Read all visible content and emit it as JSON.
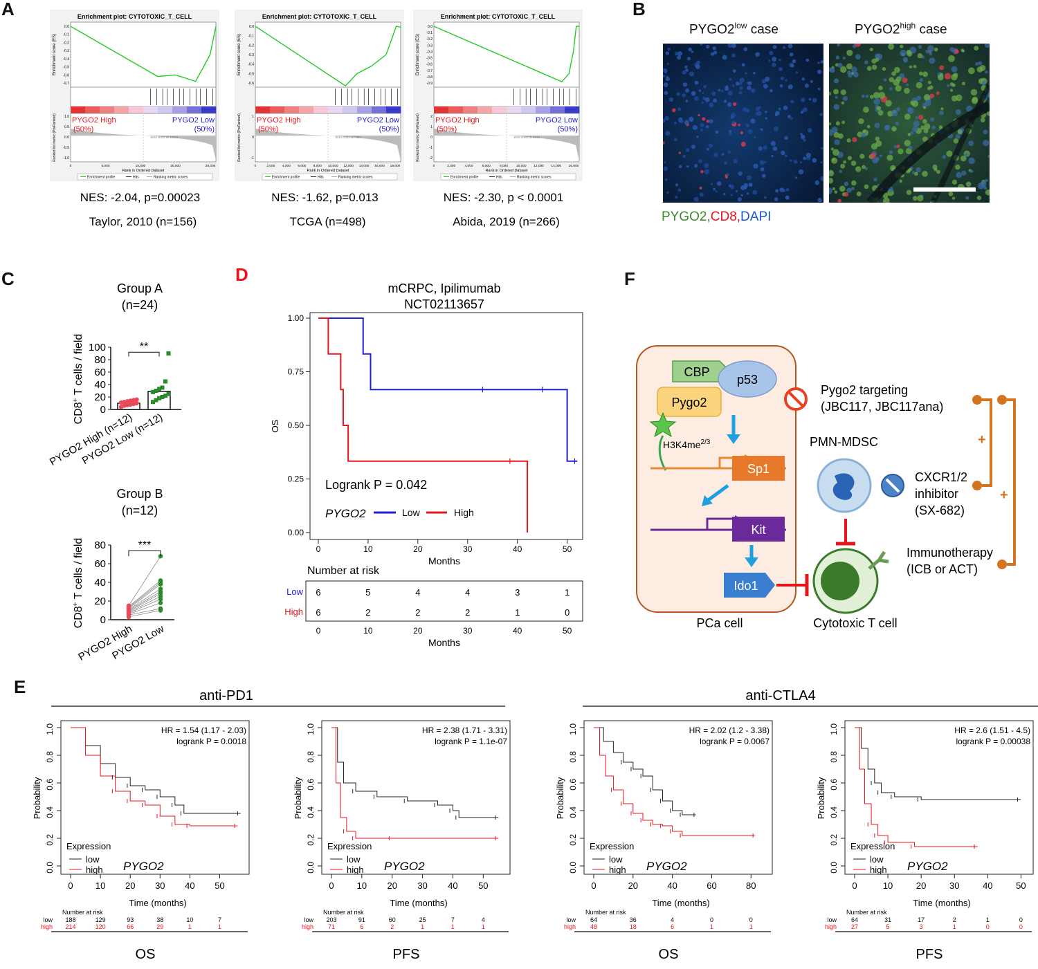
{
  "panels": {
    "A": {
      "label": "A",
      "plots": [
        {
          "title": "Enrichment plot: CYTOTOXIC_T_CELL",
          "es_label": "Enrichment score (ES)",
          "es_ticks": [
            "0.0",
            "-0.1",
            "-0.2",
            "-0.3",
            "-0.4",
            "-0.5",
            "-0.6",
            "-0.7"
          ],
          "metric_label": "Ranked list metric (PreRanked)",
          "metric_ticks": [
            "1.0",
            "0.5",
            "0.0",
            "-0.5",
            "-1.0"
          ],
          "x_label": "Rank in Ordered Dataset",
          "x_ticks": [
            "0",
            "5,000",
            "10,000",
            "15,000",
            "20,000"
          ],
          "high_label": "PYGO2 High",
          "high_pct": "(50%)",
          "low_label": "PYGO2 Low",
          "low_pct": "(50%)",
          "zero_cross": "Zero cross at 10534",
          "legend": [
            "Enrichment profile",
            "Hits",
            "Ranking metric scores"
          ],
          "nes": "NES: -2.04, p=0.00023",
          "dataset": "Taylor, 2010 (n=156)",
          "es_curve": [
            [
              0,
              0
            ],
            [
              0.6,
              -0.62
            ],
            [
              0.72,
              -0.6
            ],
            [
              0.86,
              -0.68
            ],
            [
              0.9,
              -0.55
            ],
            [
              0.96,
              -0.35
            ],
            [
              1,
              0
            ]
          ]
        },
        {
          "title": "Enrichment plot: CYTOTOXIC_T_CELL",
          "es_label": "Enrichment score (ES)",
          "es_ticks": [
            "0.0",
            "-0.1",
            "-0.2",
            "-0.3",
            "-0.4",
            "-0.5",
            "-0.6"
          ],
          "metric_label": "Ranked list metric (PreRanked)",
          "metric_ticks": [
            "1",
            "0",
            "-1"
          ],
          "x_label": "Rank in Ordered Dataset",
          "x_ticks": [
            "0",
            "2,000",
            "4,000",
            "6,000",
            "8,000",
            "10,000",
            "12,000",
            "14,000",
            "16,000",
            "18,000"
          ],
          "high_label": "PYGO2 High",
          "high_pct": "(50%)",
          "low_label": "PYGO2 Low",
          "low_pct": "(50%)",
          "zero_cross": "Zero cross at 7394",
          "legend": [
            "Enrichment profile",
            "Hits",
            "Ranking metric scores"
          ],
          "nes": "NES: -1.62, p=0.013",
          "dataset": "TCGA (n=498)",
          "es_curve": [
            [
              0,
              0
            ],
            [
              0.62,
              -0.63
            ],
            [
              0.7,
              -0.5
            ],
            [
              0.8,
              -0.42
            ],
            [
              0.9,
              -0.3
            ],
            [
              0.97,
              0
            ],
            [
              1,
              -0.01
            ]
          ]
        },
        {
          "title": "Enrichment plot: CYTOTOXIC_T_CELL",
          "es_label": "Enrichment score (ES)",
          "es_ticks": [
            "0.0",
            "-0.1",
            "-0.2",
            "-0.3",
            "-0.4",
            "-0.5",
            "-0.6",
            "-0.7",
            "-0.8",
            "-0.9"
          ],
          "metric_label": "Ranked list metric (PreRanked)",
          "metric_ticks": [
            "2",
            "1",
            "0",
            "-1",
            "-2"
          ],
          "x_label": "Rank in Ordered Dataset",
          "x_ticks": [
            "0",
            "2,000",
            "4,000",
            "6,000",
            "8,000",
            "10,000",
            "12,000",
            "14,000",
            "16,000"
          ],
          "high_label": "PYGO2 High",
          "high_pct": "(50%)",
          "low_label": "PYGO2 Low",
          "low_pct": "(50%)",
          "zero_cross": "Zero cross at 9040",
          "legend": [
            "Enrichment profile",
            "Hits",
            "Ranking metric scores"
          ],
          "nes": "NES: -2.30, p < 0.0001",
          "dataset": "Abida, 2019 (n=266)",
          "es_curve": [
            [
              0,
              0
            ],
            [
              0.88,
              -0.88
            ],
            [
              0.93,
              -0.75
            ],
            [
              0.96,
              -0.4
            ],
            [
              0.98,
              0
            ],
            [
              1,
              0
            ]
          ]
        }
      ]
    },
    "B": {
      "label": "B",
      "low_case": "PYGO2",
      "low_sup": "low",
      "low_suffix": " case",
      "high_case": "PYGO2",
      "high_sup": "high",
      "high_suffix": " case",
      "legend_pygo2": "PYGO2,",
      "legend_cd8": "CD8,",
      "legend_dapi": "DAPI",
      "colors": {
        "pygo2": "#3a8a2a",
        "cd8": "#e8141c",
        "dapi": "#1a56c8"
      }
    },
    "C": {
      "label": "C",
      "groupA_title": "Group A",
      "groupA_n": "(n=24)",
      "groupA_sig": "**",
      "groupA_yticks": [
        "0",
        "20",
        "40",
        "60",
        "80",
        "100"
      ],
      "groupA_xlabels": [
        "PYGO2 High (n=12)",
        "PYGO2 Low (n=12)"
      ],
      "ylabel_prefix": "CD8",
      "ylabel_sup": "+",
      "ylabel_suffix": " T cells / field",
      "groupB_title": "Group B",
      "groupB_n": "(n=12)",
      "groupB_sig": "***",
      "groupB_yticks": [
        "0",
        "20",
        "40",
        "60",
        "80"
      ],
      "groupB_xlabels": [
        "PYGO2 High",
        "PYGO2 Low"
      ]
    },
    "D": {
      "label": "D",
      "title1": "mCRPC, Ipilimumab",
      "title2": "NCT02113657",
      "ylabel": "OS",
      "yticks": [
        "1.00",
        "0.75",
        "0.50",
        "0.25",
        "0.00"
      ],
      "xticks": [
        "0",
        "10",
        "20",
        "30",
        "40",
        "50"
      ],
      "xlabel": "Months",
      "logrank": "Logrank P = 0.042",
      "gene": "PYGO2",
      "legend_low": "Low",
      "legend_high": "High",
      "risk_title": "Number at risk",
      "risk_low_label": "Low",
      "risk_high_label": "High",
      "risk_low": [
        "6",
        "5",
        "4",
        "4",
        "3",
        "1"
      ],
      "risk_high": [
        "6",
        "2",
        "2",
        "2",
        "1",
        "0"
      ],
      "colors": {
        "low": "#1f1fd6",
        "high": "#e8141c"
      }
    },
    "E": {
      "label": "E",
      "group1": "anti-PD1",
      "group2": "anti-CTLA4",
      "plots": [
        {
          "hr": "HR = 1.54 (1.17 - 2.03)",
          "logrank": "logrank P = 0.0018",
          "xticks": [
            "0",
            "10",
            "20",
            "30",
            "40",
            "50"
          ],
          "xmax": 58,
          "risk_low": [
            "188",
            "129",
            "93",
            "38",
            "10",
            "7"
          ],
          "risk_high": [
            "214",
            "120",
            "66",
            "29",
            "1",
            "1"
          ],
          "endpoint": "OS",
          "low_curve": [
            [
              0,
              1
            ],
            [
              5,
              0.87
            ],
            [
              10,
              0.74
            ],
            [
              15,
              0.64
            ],
            [
              20,
              0.58
            ],
            [
              25,
              0.55
            ],
            [
              30,
              0.5
            ],
            [
              35,
              0.44
            ],
            [
              38,
              0.38
            ],
            [
              57,
              0.38
            ]
          ],
          "high_curve": [
            [
              0,
              1
            ],
            [
              5,
              0.8
            ],
            [
              10,
              0.65
            ],
            [
              15,
              0.54
            ],
            [
              20,
              0.47
            ],
            [
              25,
              0.44
            ],
            [
              30,
              0.36
            ],
            [
              35,
              0.3
            ],
            [
              40,
              0.29
            ],
            [
              56,
              0.29
            ]
          ]
        },
        {
          "hr": "HR = 2.38 (1.71 - 3.31)",
          "logrank": "logrank P = 1.1e-07",
          "xticks": [
            "0",
            "10",
            "20",
            "30",
            "40",
            "50"
          ],
          "xmax": 57,
          "risk_low": [
            "203",
            "91",
            "60",
            "25",
            "7",
            "4"
          ],
          "risk_high": [
            "71",
            "6",
            "2",
            "1",
            "1",
            "1"
          ],
          "endpoint": "PFS",
          "low_curve": [
            [
              0,
              1
            ],
            [
              2,
              0.75
            ],
            [
              4,
              0.6
            ],
            [
              8,
              0.54
            ],
            [
              15,
              0.5
            ],
            [
              25,
              0.47
            ],
            [
              35,
              0.44
            ],
            [
              40,
              0.4
            ],
            [
              42,
              0.35
            ],
            [
              55,
              0.35
            ]
          ],
          "high_curve": [
            [
              0,
              1
            ],
            [
              1.5,
              0.6
            ],
            [
              3,
              0.35
            ],
            [
              5,
              0.25
            ],
            [
              8,
              0.2
            ],
            [
              20,
              0.2
            ],
            [
              55,
              0.2
            ]
          ]
        },
        {
          "hr": "HR = 2.02 (1.2 - 3.38)",
          "logrank": "logrank P = 0.0067",
          "xticks": [
            "0",
            "20",
            "40",
            "60",
            "80"
          ],
          "xmax": 88,
          "risk_low": [
            "64",
            "36",
            "4",
            "0",
            "0"
          ],
          "risk_high": [
            "48",
            "18",
            "6",
            "1",
            "1"
          ],
          "endpoint": "OS",
          "low_curve": [
            [
              0,
              1
            ],
            [
              5,
              0.9
            ],
            [
              10,
              0.82
            ],
            [
              15,
              0.75
            ],
            [
              20,
              0.7
            ],
            [
              25,
              0.65
            ],
            [
              30,
              0.55
            ],
            [
              35,
              0.47
            ],
            [
              40,
              0.4
            ],
            [
              45,
              0.37
            ],
            [
              52,
              0.37
            ]
          ],
          "high_curve": [
            [
              0,
              1
            ],
            [
              3,
              0.8
            ],
            [
              6,
              0.65
            ],
            [
              10,
              0.55
            ],
            [
              15,
              0.45
            ],
            [
              20,
              0.38
            ],
            [
              25,
              0.33
            ],
            [
              30,
              0.3
            ],
            [
              35,
              0.29
            ],
            [
              40,
              0.25
            ],
            [
              45,
              0.22
            ],
            [
              82,
              0.22
            ]
          ]
        },
        {
          "hr": "HR = 2.6 (1.51 - 4.5)",
          "logrank": "logrank P = 0.00038",
          "xticks": [
            "0",
            "10",
            "20",
            "30",
            "40",
            "50"
          ],
          "xmax": 52,
          "risk_low": [
            "64",
            "31",
            "17",
            "2",
            "1",
            "0"
          ],
          "risk_high": [
            "27",
            "5",
            "3",
            "1",
            "0",
            "0"
          ],
          "endpoint": "PFS",
          "low_curve": [
            [
              0,
              1
            ],
            [
              2,
              0.85
            ],
            [
              4,
              0.7
            ],
            [
              6,
              0.6
            ],
            [
              8,
              0.53
            ],
            [
              12,
              0.5
            ],
            [
              20,
              0.48
            ],
            [
              50,
              0.48
            ]
          ],
          "high_curve": [
            [
              0,
              1
            ],
            [
              1.5,
              0.7
            ],
            [
              3,
              0.45
            ],
            [
              5,
              0.3
            ],
            [
              7,
              0.22
            ],
            [
              10,
              0.17
            ],
            [
              18,
              0.14
            ],
            [
              37,
              0.14
            ]
          ]
        }
      ],
      "ylabel": "Probability",
      "yticks": [
        "0.0",
        "0.2",
        "0.4",
        "0.6",
        "0.8",
        "1.0"
      ],
      "xlabel": "Time (months)",
      "legend_title": "Expression",
      "legend_low": "low",
      "legend_high": "high",
      "gene": "PYGO2",
      "risk_title": "Number at risk",
      "risk_low_label": "low",
      "risk_high_label": "high",
      "colors": {
        "low": "#222222",
        "high": "#e8141c"
      }
    },
    "F": {
      "label": "F",
      "cbp": "CBP",
      "p53": "p53",
      "pygo2": "Pygo2",
      "h3k4": "H3K4me",
      "h3k4_sup": "2/3",
      "sp1": "Sp1",
      "kit": "Kit",
      "ido1": "Ido1",
      "pca_cell": "PCa cell",
      "pygo2_targeting": "Pygo2 targeting",
      "pygo2_drugs": "(JBC117, JBC117ana)",
      "pmn_mdsc": "PMN-MDSC",
      "cxcr": "CXCR1/2",
      "inhibitor": "inhibitor",
      "sx": "(SX-682)",
      "immuno": "Immunotherapy",
      "icb": "(ICB or ACT)",
      "ctl": "Cytotoxic T cell",
      "plus": "+"
    }
  }
}
